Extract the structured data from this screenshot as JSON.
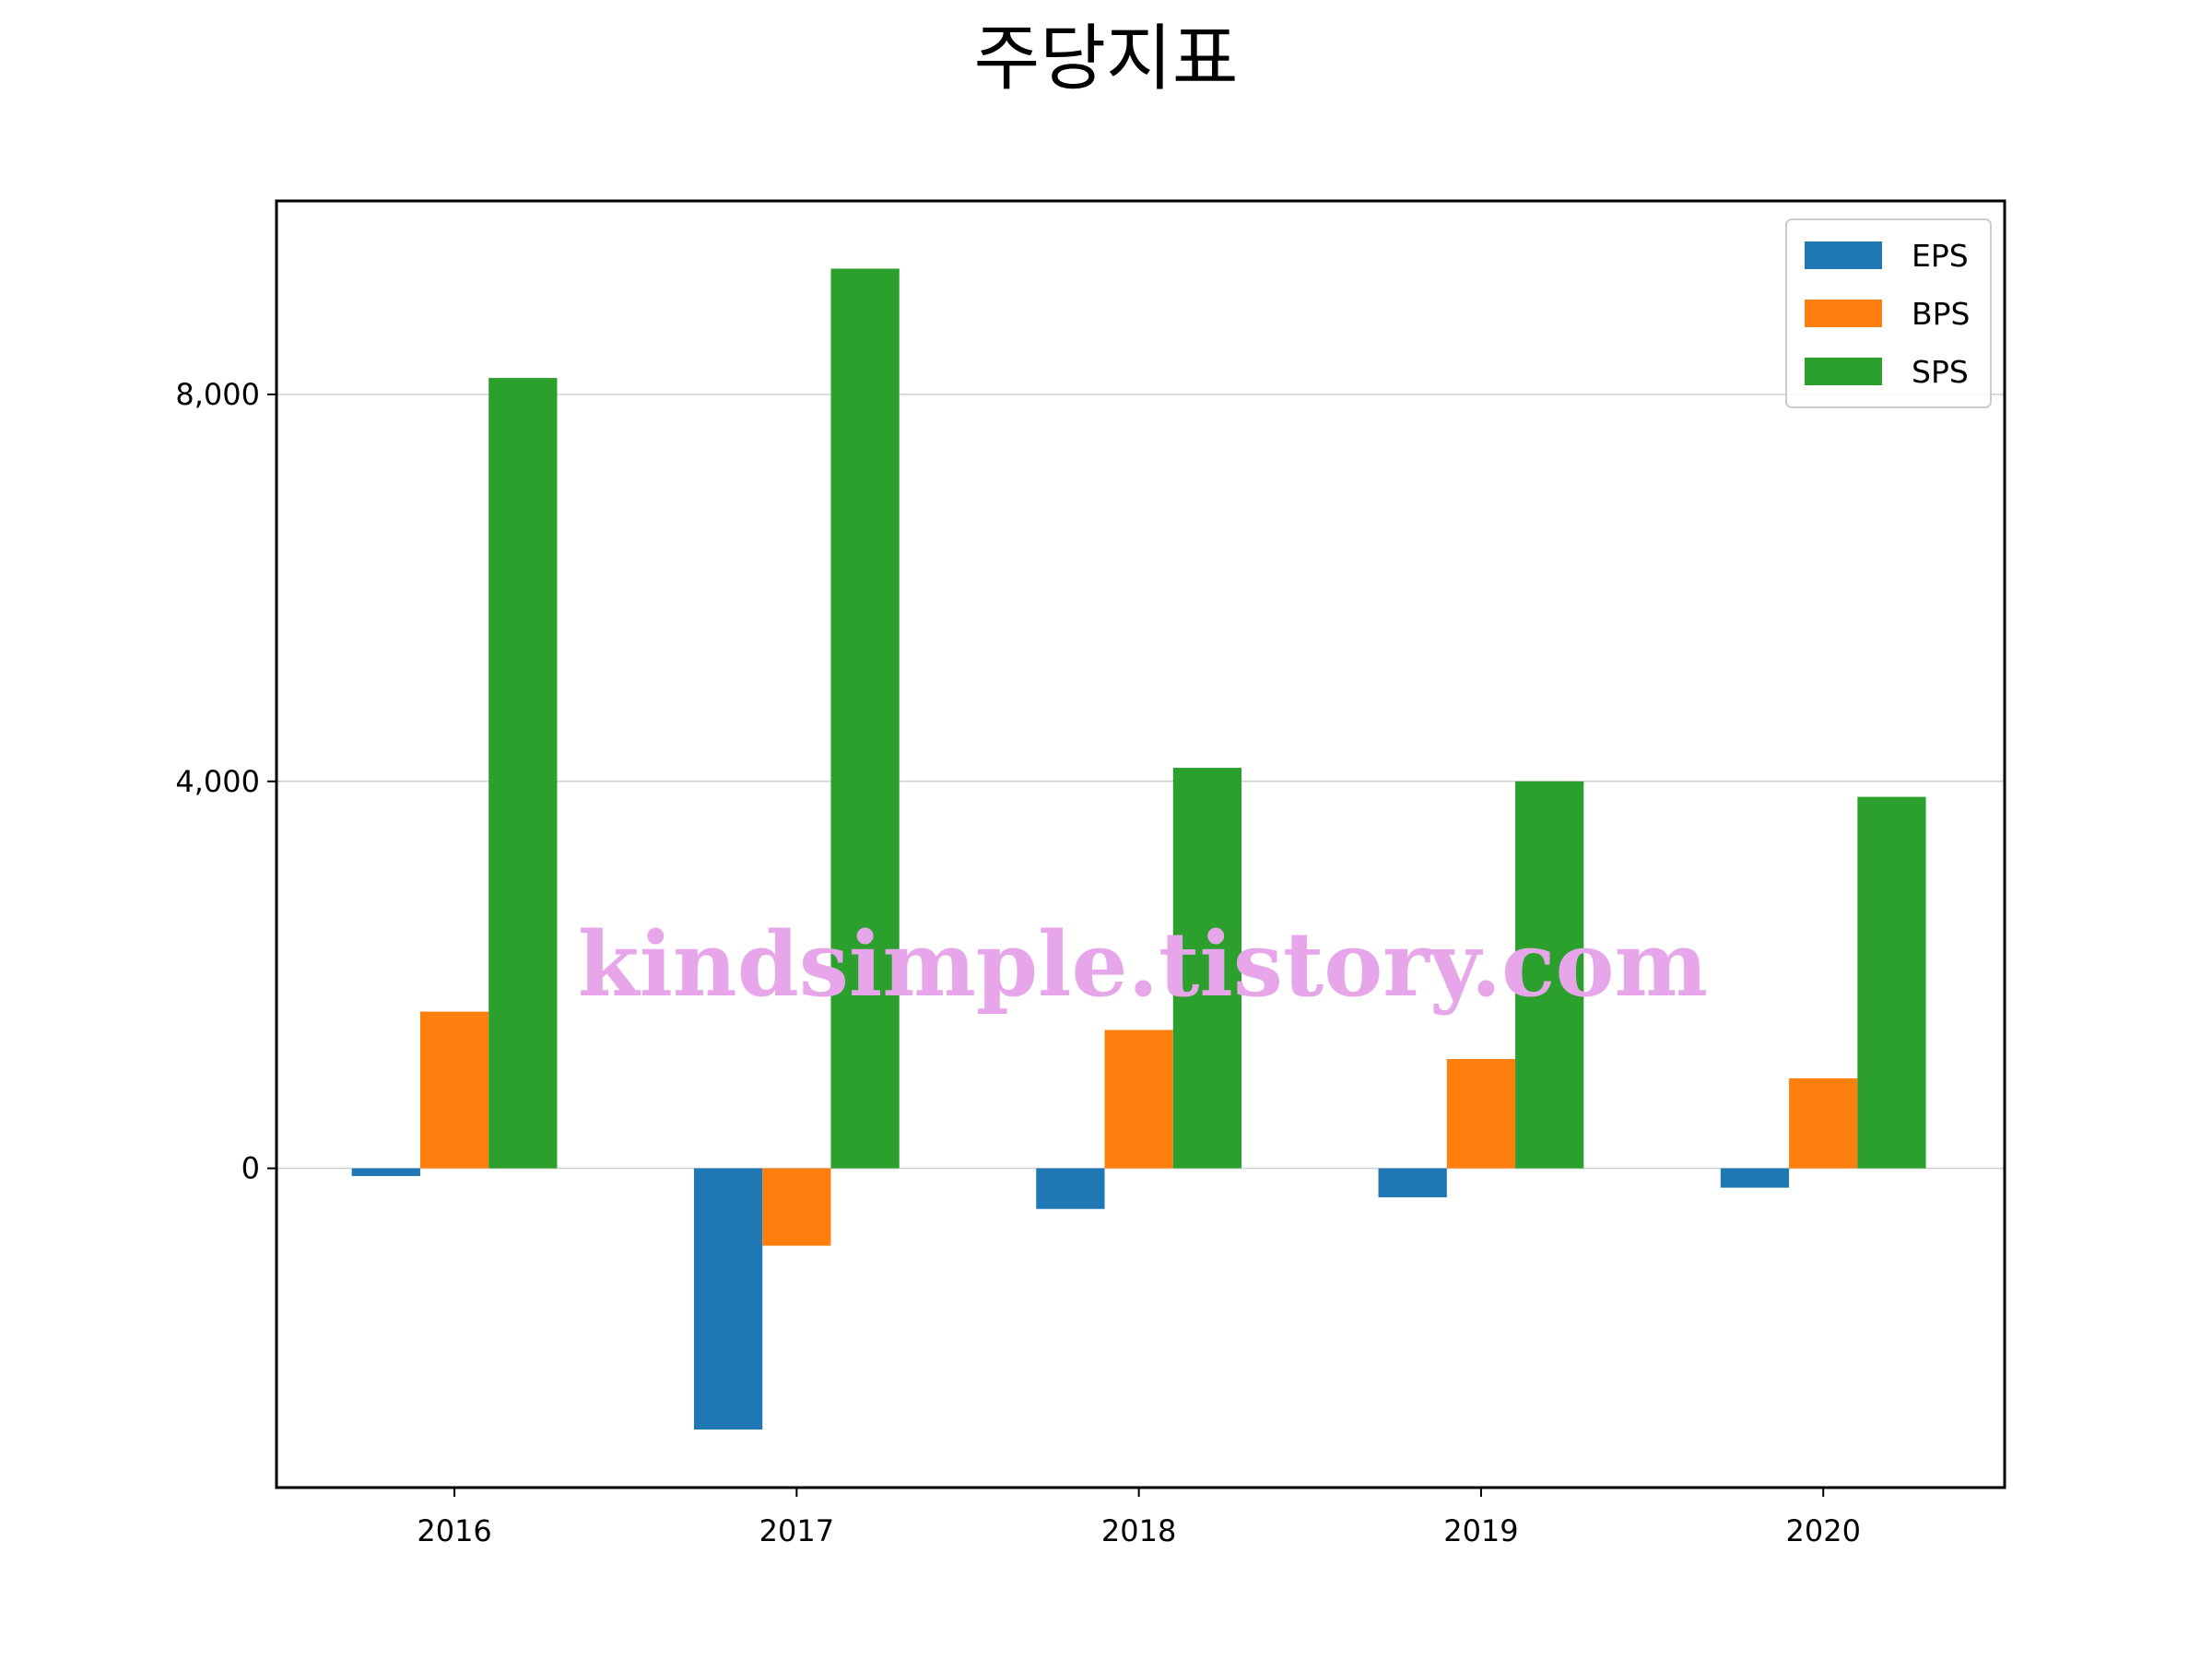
{
  "chart_data": {
    "type": "bar",
    "title": "주당지표",
    "xlabel": "",
    "ylabel": "",
    "categories": [
      "2016",
      "2017",
      "2018",
      "2019",
      "2020"
    ],
    "series": [
      {
        "name": "EPS",
        "color": "#1f77b4",
        "values": [
          -80,
          -2700,
          -420,
          -300,
          -200
        ]
      },
      {
        "name": "BPS",
        "color": "#ff7f0e",
        "values": [
          1620,
          -800,
          1430,
          1130,
          930
        ]
      },
      {
        "name": "SPS",
        "color": "#2ca02c",
        "values": [
          8170,
          9300,
          4140,
          4000,
          3840
        ]
      }
    ],
    "ylim": [
      -3300,
      10000
    ],
    "yticks": [
      0,
      4000,
      8000
    ],
    "ytick_labels": [
      "0",
      "4,000",
      "8,000"
    ],
    "grid": "horizontal",
    "legend_position": "top-right"
  },
  "watermark": "kindsimple.tistory.com"
}
